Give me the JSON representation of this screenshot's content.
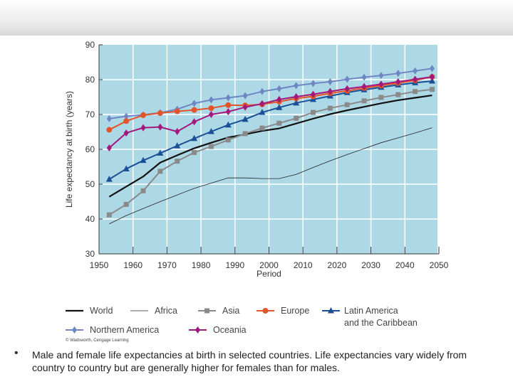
{
  "caption": "Male and female life expectancies at birth in selected countries. Life expectancies vary widely from country to country but are generally higher for females than for males.",
  "copyright": "© Wadsworth, Cengage Learning",
  "chart_data": {
    "type": "line",
    "xlabel": "Period",
    "ylabel": "Life expectancy at birth (years)",
    "xlim": [
      1950,
      2050
    ],
    "ylim": [
      30,
      90
    ],
    "xticks": [
      "1950",
      "1960",
      "1970",
      "1980",
      "1990",
      "2000",
      "2010",
      "2020",
      "2030",
      "2040",
      "2050"
    ],
    "yticks": [
      "30",
      "40",
      "50",
      "60",
      "70",
      "80",
      "90"
    ],
    "grid": true,
    "background": "#add8e6",
    "legend_position": "bottom",
    "x": [
      1953,
      1958,
      1963,
      1968,
      1973,
      1978,
      1983,
      1988,
      1993,
      1998,
      2003,
      2008,
      2013,
      2018,
      2023,
      2028,
      2033,
      2038,
      2043,
      2048
    ],
    "series": [
      {
        "name": "World",
        "color": "#111111",
        "marker": "none",
        "width": 2.2,
        "values": [
          46.4,
          49.3,
          52.2,
          56.2,
          58.3,
          60.3,
          61.9,
          63.4,
          64.3,
          65.3,
          66.0,
          67.4,
          68.8,
          70.1,
          71.2,
          72.2,
          73.2,
          74.1,
          74.8,
          75.5
        ]
      },
      {
        "name": "Africa",
        "color": "#222222",
        "marker": "none",
        "width": 0.8,
        "values": [
          38.6,
          41.0,
          43.0,
          45.0,
          46.9,
          48.8,
          50.3,
          51.8,
          51.8,
          51.6,
          51.6,
          52.8,
          54.8,
          56.7,
          58.5,
          60.2,
          61.9,
          63.3,
          64.7,
          66.2
        ]
      },
      {
        "name": "Asia",
        "color": "#8a8a8a",
        "marker": "square",
        "width": 2,
        "values": [
          41.2,
          44.2,
          48.1,
          53.7,
          56.6,
          59.1,
          60.8,
          62.7,
          64.5,
          66.1,
          67.5,
          68.9,
          70.6,
          71.8,
          72.8,
          73.9,
          74.9,
          75.7,
          76.6,
          77.2
        ]
      },
      {
        "name": "Europe",
        "color": "#e2552a",
        "marker": "circle",
        "width": 2,
        "values": [
          65.6,
          68.1,
          69.8,
          70.4,
          70.9,
          71.3,
          71.8,
          72.7,
          72.6,
          72.9,
          73.7,
          74.6,
          75.2,
          76.1,
          76.8,
          77.6,
          78.3,
          79.0,
          79.8,
          80.8
        ]
      },
      {
        "name": "Latin America and the Caribbean",
        "color": "#1b4f96",
        "marker": "triangle",
        "width": 2,
        "values": [
          51.4,
          54.4,
          56.8,
          58.9,
          61.0,
          63.1,
          65.1,
          67.0,
          68.6,
          70.6,
          72.0,
          73.3,
          74.3,
          75.3,
          76.3,
          77.1,
          77.8,
          78.5,
          79.1,
          79.6
        ]
      },
      {
        "name": "Northern America",
        "color": "#6f85c4",
        "marker": "diamond",
        "width": 2,
        "values": [
          68.8,
          69.5,
          69.9,
          70.5,
          71.5,
          73.2,
          74.2,
          74.8,
          75.4,
          76.6,
          77.4,
          78.3,
          78.9,
          79.4,
          80.1,
          80.7,
          81.2,
          81.8,
          82.5,
          83.2
        ]
      },
      {
        "name": "Oceania",
        "color": "#a3187c",
        "marker": "diamond",
        "width": 2,
        "values": [
          60.4,
          64.7,
          66.2,
          66.4,
          65.1,
          67.9,
          70.0,
          70.8,
          72.1,
          73.1,
          74.3,
          75.1,
          75.8,
          76.6,
          77.4,
          78.0,
          78.7,
          79.4,
          80.1,
          80.8
        ]
      }
    ]
  }
}
